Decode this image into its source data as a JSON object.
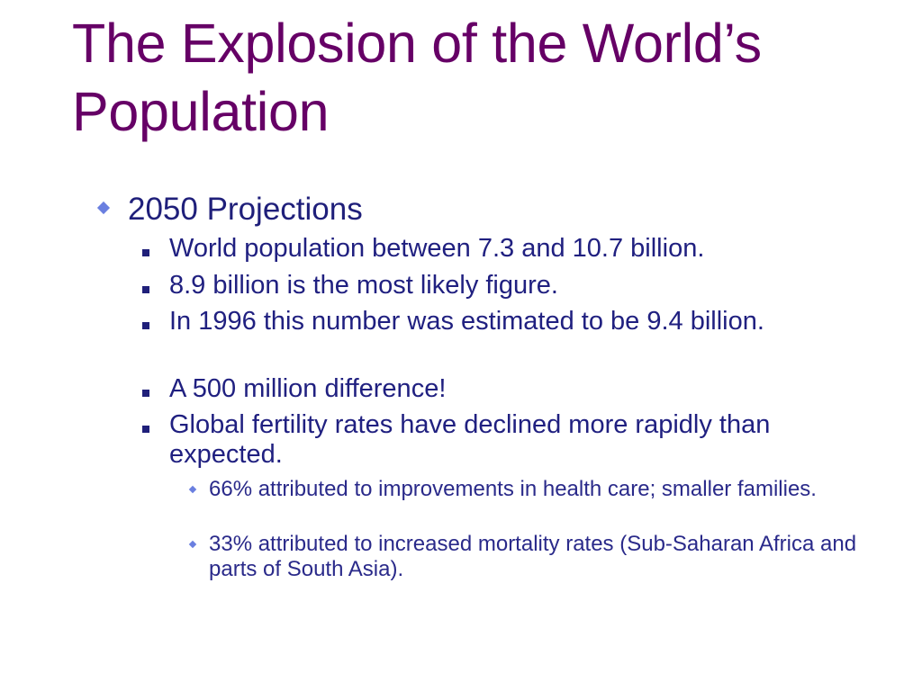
{
  "slide": {
    "title_line1": "The Explosion of the World’s",
    "title_line2": "Population",
    "main_bullet": "2050 Projections",
    "sub_bullets": [
      "World population between 7.3 and 10.7 billion.",
      "8.9 billion is the most likely figure.",
      "In 1996 this number was estimated to be 9.4 billion.",
      "A 500 million difference!",
      "Global fertility rates have declined more rapidly than expected."
    ],
    "sub_sub_bullets": [
      "66% attributed to improvements in health care; smaller families.",
      "33% attributed to increased mortality rates (Sub-Saharan Africa and parts of South Asia)."
    ]
  }
}
